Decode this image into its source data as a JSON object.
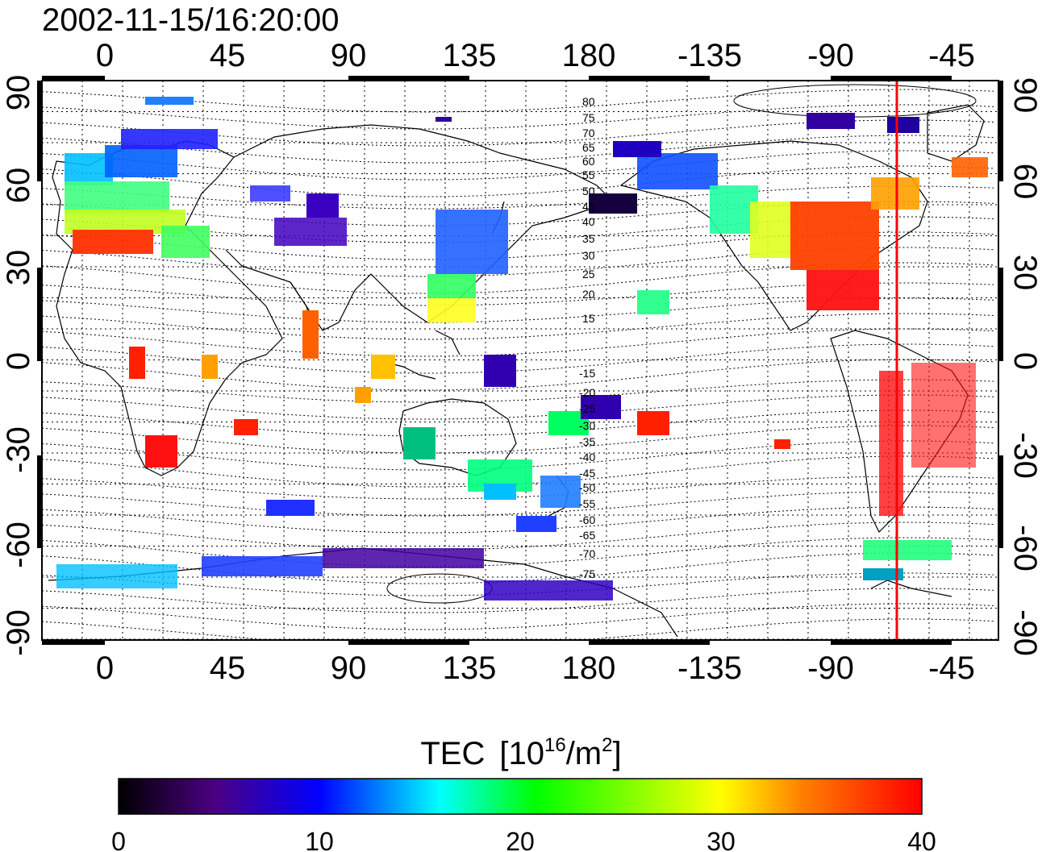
{
  "timestamp": "2002-11-15/16:20:00",
  "top_axis_labels": [
    "0",
    "45",
    "90",
    "135",
    "180",
    "-135",
    "-90",
    "-45"
  ],
  "bottom_axis_labels": [
    "0",
    "45",
    "90",
    "135",
    "180",
    "-135",
    "-90",
    "-45"
  ],
  "left_axis_labels": [
    "90",
    "60",
    "30",
    "0",
    "-30",
    "-60",
    "-90"
  ],
  "right_axis_labels": [
    "90",
    "60",
    "30",
    "0",
    "-30",
    "-60",
    "-90"
  ],
  "magnetic_latitude_labels_north": [
    "80",
    "75",
    "70",
    "65",
    "60",
    "55",
    "50",
    "45",
    "40",
    "35",
    "30",
    "25",
    "20",
    "15"
  ],
  "magnetic_latitude_labels_south": [
    "-15",
    "-20",
    "-25",
    "-30",
    "-35",
    "-40",
    "-45",
    "-50",
    "-55",
    "-60",
    "-65",
    "-70",
    "-75"
  ],
  "colorbar": {
    "title": "TEC",
    "unit_prefix": "[10",
    "unit_exp": "16",
    "unit_mid": "/m",
    "unit_exp2": "2",
    "unit_suffix": "]",
    "tick_labels": [
      "0",
      "10",
      "20",
      "30",
      "40"
    ],
    "range": [
      0,
      40
    ],
    "colors": [
      "#000000",
      "#4b0082",
      "#0000ff",
      "#00ffff",
      "#00ff00",
      "#ffff00",
      "#ff8000",
      "#ff0000"
    ]
  },
  "terminator_longitude": -65,
  "terminator_color": "#ff0000"
}
